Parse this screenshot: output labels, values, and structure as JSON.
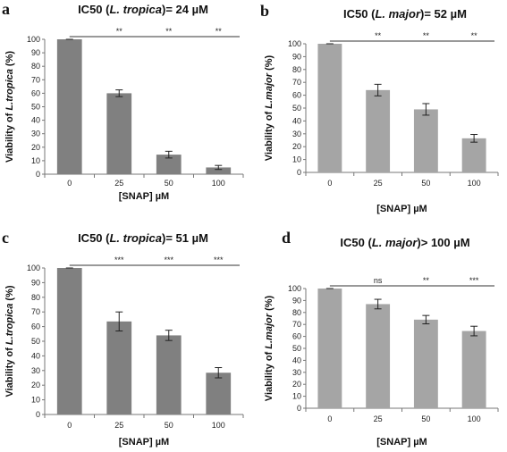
{
  "chart_data": [
    {
      "panel": "a",
      "type": "bar",
      "title": {
        "pre": "IC50 (",
        "italic": "L. tropica",
        "post": ")= 24 µM"
      },
      "xlabel": "[SNAP] µM",
      "ylabel": {
        "pre": "Viability of ",
        "italic": "L.tropica",
        "post": " (%)"
      },
      "categories": [
        "0",
        "25",
        "50",
        "100"
      ],
      "values": [
        100,
        60,
        14.5,
        5
      ],
      "errors": [
        0,
        2.5,
        2.5,
        1.5
      ],
      "significance": [
        "**",
        "**",
        "**"
      ],
      "ylim": [
        0,
        100
      ],
      "yticks": [
        0,
        10,
        20,
        30,
        40,
        50,
        60,
        70,
        80,
        90,
        100
      ],
      "bar_color": "#808080"
    },
    {
      "panel": "b",
      "type": "bar",
      "title": {
        "pre": "IC50 (",
        "italic": "L. major",
        "post": ")= 52 µM"
      },
      "xlabel": "[SNAP] µM",
      "ylabel": {
        "pre": "Viability of ",
        "italic": "L.major",
        "post": " (%)"
      },
      "categories": [
        "0",
        "25",
        "50",
        "100"
      ],
      "values": [
        100,
        64,
        49,
        26.5
      ],
      "errors": [
        0,
        4.5,
        4.5,
        3
      ],
      "significance": [
        "**",
        "**",
        "**"
      ],
      "ylim": [
        0,
        100
      ],
      "yticks": [
        0,
        10,
        20,
        30,
        40,
        50,
        60,
        70,
        80,
        90,
        100
      ],
      "bar_color": "#a5a5a5"
    },
    {
      "panel": "c",
      "type": "bar",
      "title": {
        "pre": "IC50 (",
        "italic": "L. tropica",
        "post": ")= 51 µM"
      },
      "xlabel": "[SNAP] µM",
      "ylabel": {
        "pre": "Viability of ",
        "italic": "L.tropica",
        "post": " (%)"
      },
      "categories": [
        "0",
        "25",
        "50",
        "100"
      ],
      "values": [
        100,
        63.5,
        54,
        28.5
      ],
      "errors": [
        0,
        6.5,
        3.5,
        3.5
      ],
      "significance": [
        "***",
        "***",
        "***"
      ],
      "ylim": [
        0,
        100
      ],
      "yticks": [
        0,
        10,
        20,
        30,
        40,
        50,
        60,
        70,
        80,
        90,
        100
      ],
      "bar_color": "#808080"
    },
    {
      "panel": "d",
      "type": "bar",
      "title": {
        "pre": "IC50 (",
        "italic": "L. major",
        "post": ")> 100 µM"
      },
      "xlabel": "[SNAP] µM",
      "ylabel": {
        "pre": "Viability of ",
        "italic": "L.major",
        "post": " (%)"
      },
      "categories": [
        "0",
        "25",
        "50",
        "100"
      ],
      "values": [
        100,
        87,
        74,
        64.5
      ],
      "errors": [
        0,
        4,
        3.5,
        4
      ],
      "significance": [
        "ns",
        "**",
        "***"
      ],
      "ylim": [
        0,
        100
      ],
      "yticks": [
        0,
        10,
        20,
        30,
        40,
        50,
        60,
        70,
        80,
        90,
        100
      ],
      "bar_color": "#a5a5a5"
    }
  ]
}
